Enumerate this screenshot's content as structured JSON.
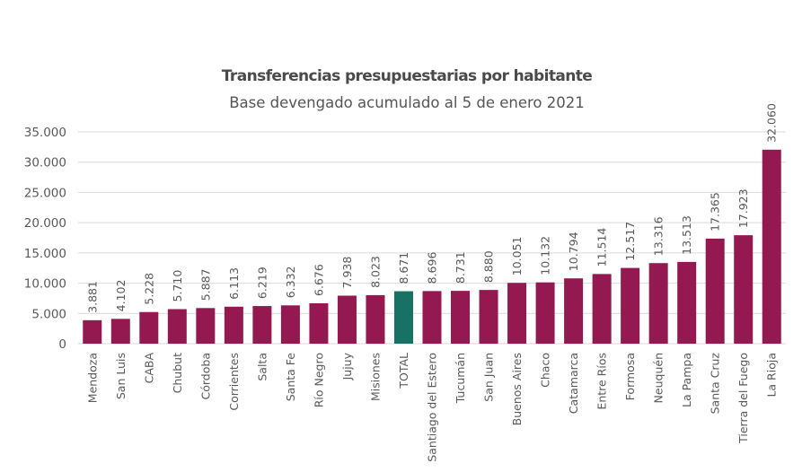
{
  "chart_data": {
    "type": "bar",
    "title": "Transferencias presupuestarias por habitante",
    "subtitle": "Base devengado acumulado al 5 de enero 2021",
    "xlabel": "",
    "ylabel": "",
    "ylim": [
      0,
      35000
    ],
    "yticks": [
      0,
      5000,
      10000,
      15000,
      20000,
      25000,
      30000,
      35000
    ],
    "ytick_labels": [
      "0",
      "5.000",
      "10.000",
      "15.000",
      "20.000",
      "25.000",
      "30.000",
      "35.000"
    ],
    "grid": true,
    "legend": "none",
    "categories": [
      "Mendoza",
      "San Luis",
      "CABA",
      "Chubut",
      "Córdoba",
      "Corrientes",
      "Salta",
      "Santa Fe",
      "Río Negro",
      "Jujuy",
      "Misiones",
      "TOTAL",
      "Santiago del Estero",
      "Tucumán",
      "San Juan",
      "Buenos Aires",
      "Chaco",
      "Catamarca",
      "Entre Ríos",
      "Formosa",
      "Neuquén",
      "La Pampa",
      "Santa Cruz",
      "Tierra del Fuego",
      "La Rioja"
    ],
    "values": [
      3881,
      4102,
      5228,
      5710,
      5887,
      6113,
      6219,
      6332,
      6676,
      7938,
      8023,
      8671,
      8696,
      8731,
      8880,
      10051,
      10132,
      10794,
      11514,
      12517,
      13316,
      13513,
      17365,
      17923,
      32060
    ],
    "value_labels": [
      "3.881",
      "4.102",
      "5.228",
      "5.710",
      "5.887",
      "6.113",
      "6.219",
      "6.332",
      "6.676",
      "7.938",
      "8.023",
      "8.671",
      "8.696",
      "8.731",
      "8.880",
      "10.051",
      "10.132",
      "10.794",
      "11.514",
      "12.517",
      "13.316",
      "13.513",
      "17.365",
      "17.923",
      "32.060"
    ],
    "highlight_category": "TOTAL",
    "colors": {
      "bar": "#951951",
      "highlight": "#177264",
      "grid": "#d9d9d9",
      "text": "#595959"
    }
  }
}
